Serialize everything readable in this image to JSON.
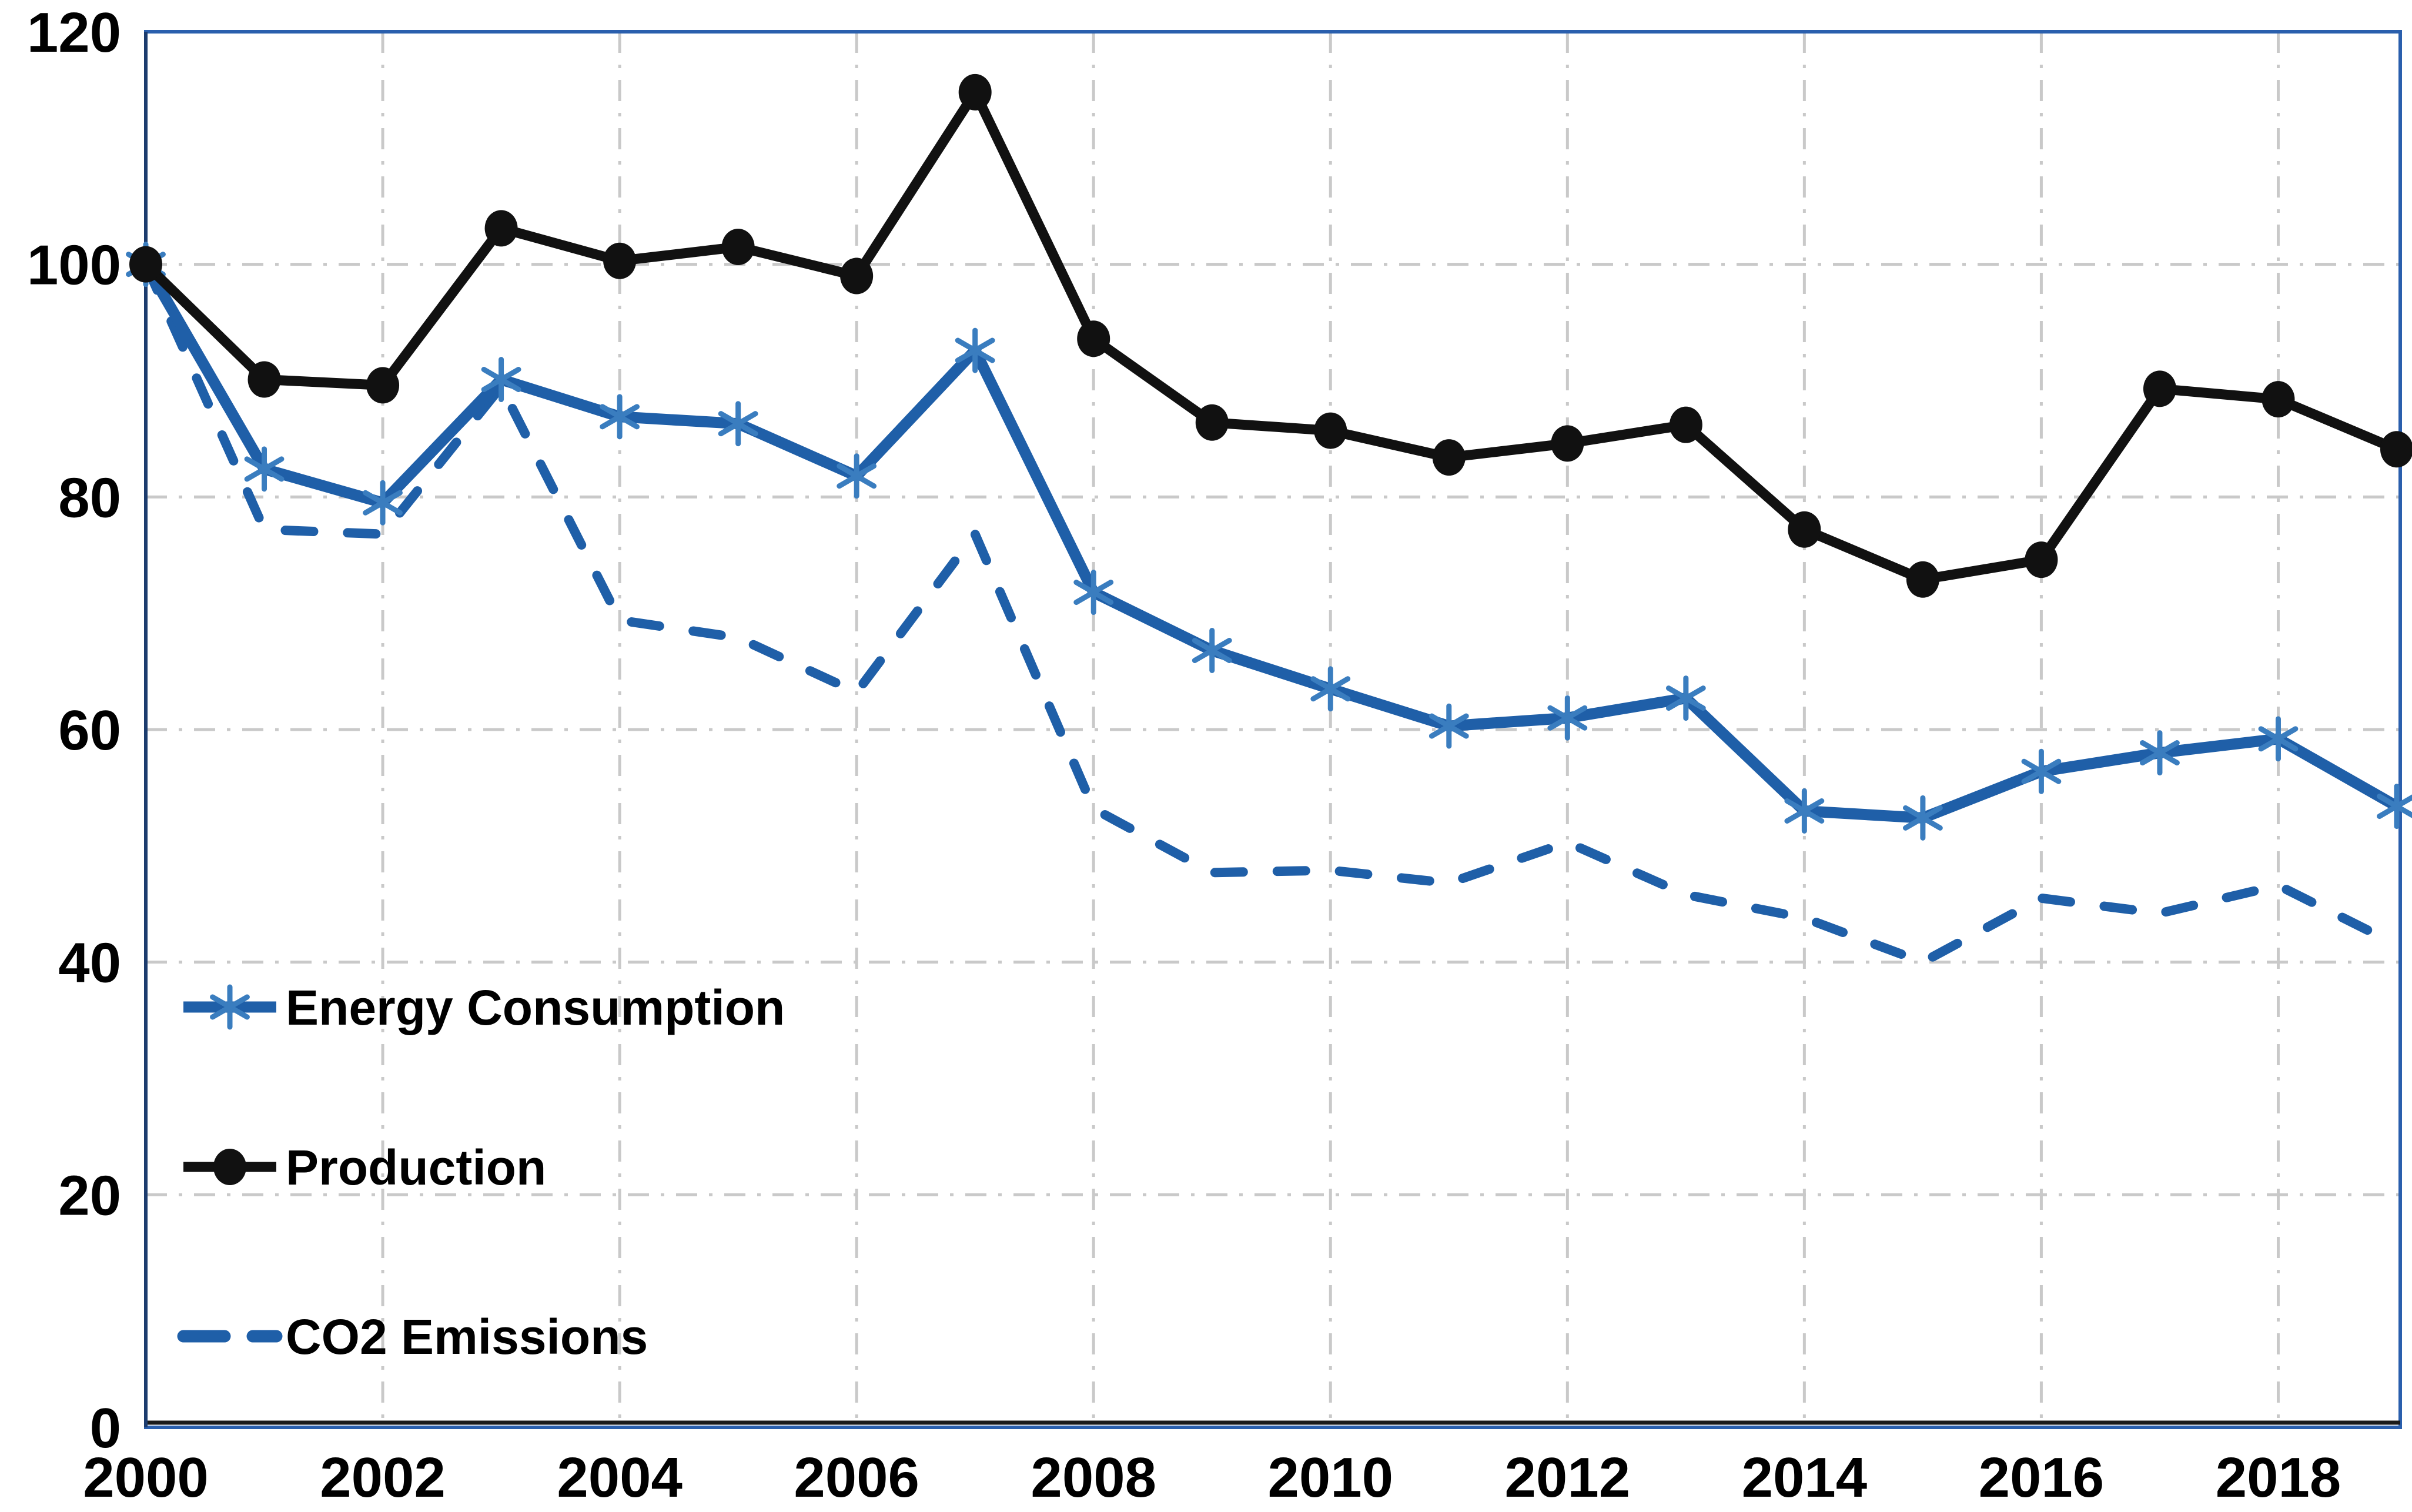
{
  "chart_data": {
    "type": "line",
    "title": "",
    "xlabel": "",
    "ylabel": "",
    "x": [
      2000,
      2001,
      2002,
      2003,
      2004,
      2005,
      2006,
      2007,
      2008,
      2009,
      2010,
      2011,
      2012,
      2013,
      2014,
      2015,
      2016,
      2017,
      2018,
      2019
    ],
    "series": [
      {
        "name": "Energy Consumption",
        "style": "solid",
        "marker": "asterisk",
        "color": "#1f5fa8",
        "marker_color": "#3a7dbf",
        "values": [
          100,
          82.4,
          79.5,
          90.1,
          86.9,
          86.3,
          81.8,
          92.6,
          71.8,
          66.8,
          63.5,
          60.3,
          61,
          62.7,
          53,
          52.4,
          56.4,
          58,
          59.2,
          53.4
        ]
      },
      {
        "name": "Production",
        "style": "solid",
        "marker": "circle",
        "color": "#111111",
        "marker_color": "#111111",
        "values": [
          100,
          90.1,
          89.6,
          103.1,
          100.3,
          101.5,
          99,
          114.8,
          93.6,
          86.4,
          85.7,
          83.4,
          84.6,
          86.2,
          77.2,
          72.9,
          74.6,
          89.3,
          88.4,
          84.1
        ]
      },
      {
        "name": "CO2 Emissions",
        "style": "dashed",
        "marker": "none",
        "color": "#1f5fa8",
        "marker_color": "#1f5fa8",
        "values": [
          100,
          77.2,
          76.8,
          89.5,
          69.4,
          67.9,
          63.2,
          76.8,
          53.2,
          47.7,
          47.9,
          46.8,
          50.3,
          45.8,
          43.8,
          40,
          45.5,
          44.2,
          46.6,
          41.5
        ]
      }
    ],
    "ylim": [
      0,
      120
    ],
    "y_ticks": [
      0,
      20,
      40,
      60,
      80,
      100,
      120
    ],
    "x_ticks": [
      2000,
      2002,
      2004,
      2006,
      2008,
      2010,
      2012,
      2014,
      2016,
      2018
    ],
    "grid": "dash-dot horizontal and vertical",
    "legend_position": "inside left, stacked vertically"
  },
  "legend": {
    "items": [
      {
        "label": "Energy Consumption"
      },
      {
        "label": "Production"
      },
      {
        "label": "CO2 Emissions"
      }
    ]
  },
  "colors": {
    "blue_line": "#1f5fa8",
    "marker_blue": "#3a7dbf",
    "ink": "#111111",
    "grid": "#c9c9c9",
    "border_blue": "#2a5fad",
    "axis_black": "#1a1a1a",
    "axis_left_navy": "#1c3c6e",
    "background": "#ffffff",
    "text": "#000000"
  }
}
